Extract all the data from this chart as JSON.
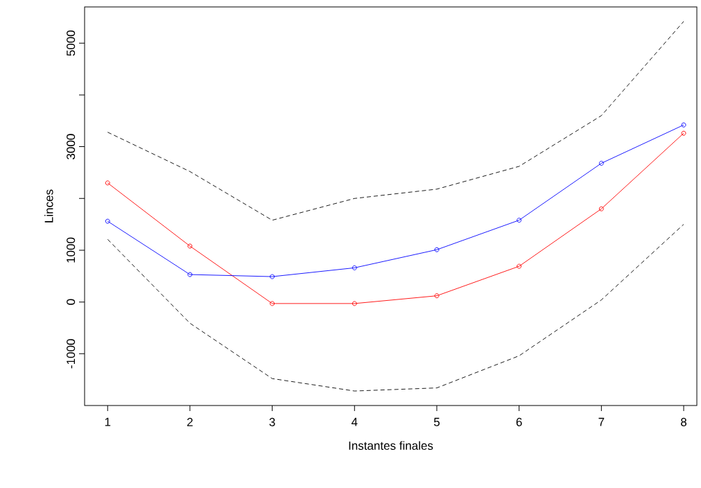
{
  "chart_data": {
    "type": "line",
    "xlabel": "Instantes finales",
    "ylabel": "Linces",
    "x": [
      1,
      2,
      3,
      4,
      5,
      6,
      7,
      8
    ],
    "xlim": [
      0.72,
      8.16
    ],
    "ylim": [
      -2000,
      5700
    ],
    "xticks": [
      1,
      2,
      3,
      4,
      5,
      6,
      7,
      8
    ],
    "yticks": [
      -1000,
      0,
      1000,
      {
        "value": 2000,
        "label": null
      },
      3000,
      {
        "value": 4000,
        "label": null
      },
      5000
    ],
    "grid": false,
    "series": [
      {
        "color": "#ff0000",
        "marker": "circle",
        "line_style": "solid",
        "values": [
          2300,
          1080,
          -30,
          -30,
          120,
          690,
          1800,
          3260
        ]
      },
      {
        "color": "#0000ff",
        "marker": "circle",
        "line_style": "solid",
        "values": [
          1560,
          530,
          490,
          660,
          1010,
          1580,
          2680,
          3420
        ]
      },
      {
        "color": "#000000",
        "marker": "none",
        "line_style": "dashed",
        "values": [
          3280,
          2520,
          1580,
          2000,
          2180,
          2620,
          3600,
          5420
        ]
      },
      {
        "color": "#000000",
        "marker": "none",
        "line_style": "dashed",
        "values": [
          1210,
          -410,
          -1480,
          -1720,
          -1660,
          -1040,
          40,
          1500
        ]
      }
    ]
  }
}
